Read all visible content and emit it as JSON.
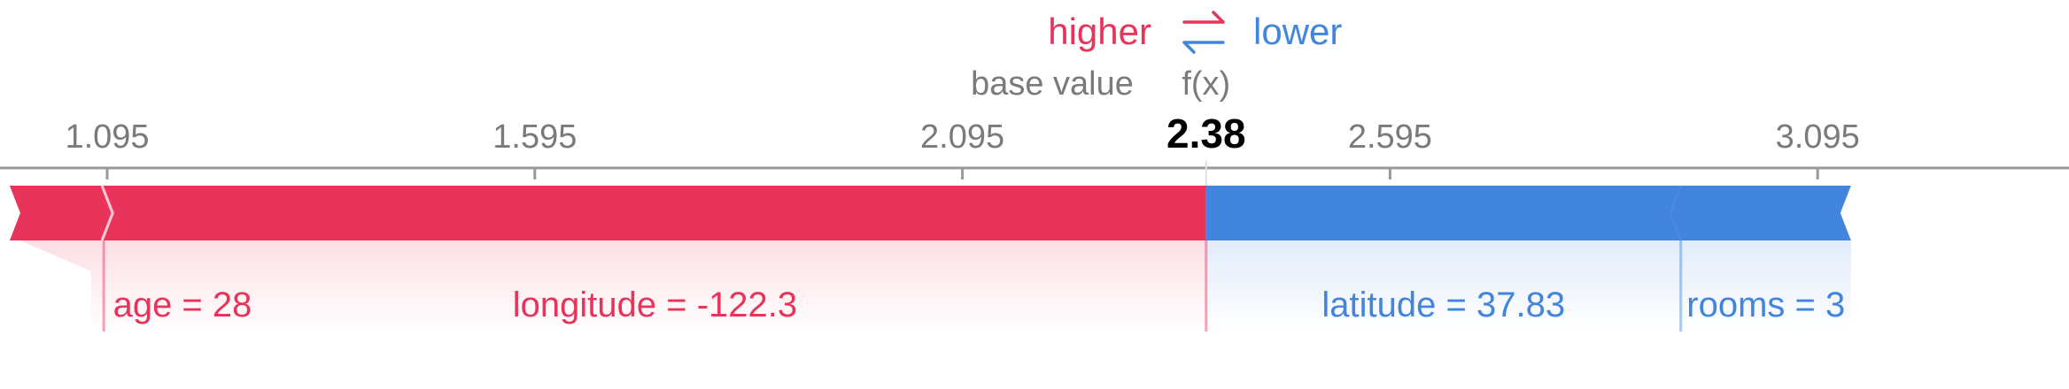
{
  "legend": {
    "higher": "higher",
    "lower": "lower",
    "arrow_icon": "swap-arrows-icon"
  },
  "chart_data": {
    "type": "force",
    "base_value_label": "base value",
    "fx_label": "f(x)",
    "fx_value": 2.38,
    "fx_text": "2.38",
    "base_value": 2.2,
    "ticks": [
      1.095,
      1.595,
      2.095,
      2.595,
      3.095
    ],
    "tick_labels": [
      "1.095",
      "1.595",
      "2.095",
      "2.595",
      "3.095"
    ],
    "xlim": [
      0.97,
      3.35
    ],
    "features": [
      {
        "label": "age = 28",
        "effect": "higher",
        "start": 0.981,
        "end": 1.091
      },
      {
        "label": "longitude = -122.3",
        "effect": "higher",
        "start": 1.091,
        "end": 2.38
      },
      {
        "label": "latitude = 37.83",
        "effect": "lower",
        "start": 2.38,
        "end": 2.935
      },
      {
        "label": "rooms = 3",
        "effect": "lower",
        "start": 2.935,
        "end": 3.134
      }
    ],
    "colors": {
      "higher": "#e8345a",
      "lower": "#4285df",
      "axis": "#999999",
      "text": "#7a7a7a"
    }
  }
}
